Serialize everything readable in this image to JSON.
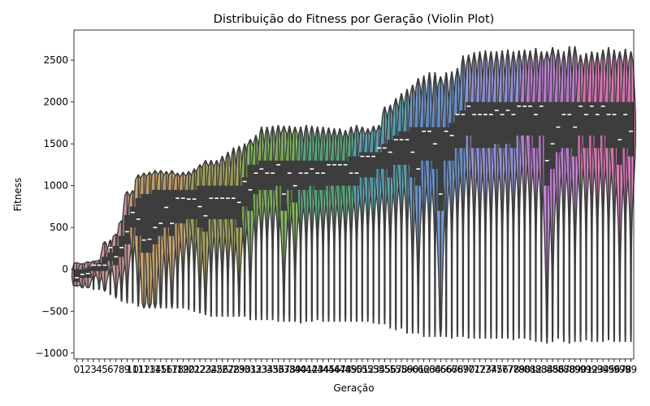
{
  "chart_data": {
    "type": "violin",
    "title": "Distribuição do Fitness por Geração (Violin Plot)",
    "xlabel": "Geração",
    "ylabel": "Fitness",
    "ylim": [
      -1070,
      2860
    ],
    "yticks": [
      -1000,
      -500,
      0,
      500,
      1000,
      1500,
      2000,
      2500
    ],
    "grid": false,
    "legend": "none",
    "colors": {
      "body": "#3d3d3d",
      "edge": "#3d3d3d",
      "median": "#ffffff",
      "palette": [
        "#c88c8c",
        "#c8a064",
        "#a0a050",
        "#78b050",
        "#50a878",
        "#50a0b0",
        "#6090d0",
        "#9090e0",
        "#c078d8",
        "#e070b8"
      ]
    },
    "categories": [
      "0",
      "1",
      "2",
      "3",
      "4",
      "5",
      "6",
      "7",
      "8",
      "9",
      "10",
      "11",
      "12",
      "13",
      "14",
      "15",
      "16",
      "17",
      "18",
      "19",
      "20",
      "21",
      "22",
      "23",
      "24",
      "25",
      "26",
      "27",
      "28",
      "29",
      "30",
      "31",
      "32",
      "33",
      "34",
      "35",
      "36",
      "37",
      "38",
      "39",
      "40",
      "41",
      "42",
      "43",
      "44",
      "45",
      "46",
      "47",
      "48",
      "49",
      "50",
      "51",
      "52",
      "53",
      "54",
      "55",
      "56",
      "57",
      "58",
      "59",
      "60",
      "61",
      "62",
      "63",
      "64",
      "65",
      "66",
      "67",
      "68",
      "69",
      "70",
      "71",
      "72",
      "73",
      "74",
      "75",
      "76",
      "77",
      "78",
      "79",
      "80",
      "81",
      "82",
      "83",
      "84",
      "85",
      "86",
      "87",
      "88",
      "89",
      "90",
      "91",
      "92",
      "93",
      "94",
      "95",
      "96",
      "97",
      "98",
      "99"
    ],
    "max": [
      80,
      70,
      90,
      100,
      110,
      330,
      350,
      420,
      580,
      930,
      940,
      1130,
      1150,
      1160,
      1180,
      1180,
      1170,
      1180,
      1150,
      1160,
      1170,
      1200,
      1250,
      1300,
      1300,
      1300,
      1350,
      1400,
      1450,
      1470,
      1500,
      1550,
      1600,
      1700,
      1700,
      1710,
      1720,
      1710,
      1710,
      1700,
      1700,
      1720,
      1710,
      1700,
      1700,
      1690,
      1680,
      1680,
      1660,
      1700,
      1720,
      1700,
      1680,
      1710,
      1720,
      1940,
      1960,
      2040,
      2100,
      2150,
      2200,
      2280,
      2310,
      2350,
      2350,
      2300,
      2350,
      2360,
      2400,
      2550,
      2560,
      2590,
      2600,
      2610,
      2600,
      2600,
      2610,
      2620,
      2600,
      2610,
      2620,
      2610,
      2640,
      2600,
      2600,
      2650,
      2620,
      2600,
      2660,
      2660,
      2560,
      2580,
      2600,
      2590,
      2620,
      2650,
      2620,
      2600,
      2630,
      2600
    ],
    "q3": [
      0,
      0,
      20,
      40,
      80,
      150,
      200,
      280,
      400,
      650,
      750,
      850,
      900,
      900,
      950,
      950,
      950,
      950,
      950,
      950,
      950,
      950,
      1000,
      1000,
      1000,
      1000,
      1000,
      1000,
      1000,
      1000,
      1100,
      1250,
      1250,
      1300,
      1300,
      1300,
      1300,
      1300,
      1300,
      1300,
      1300,
      1300,
      1300,
      1300,
      1300,
      1300,
      1300,
      1300,
      1300,
      1350,
      1350,
      1400,
      1400,
      1400,
      1400,
      1500,
      1550,
      1600,
      1650,
      1650,
      1700,
      1700,
      1700,
      1700,
      1700,
      1700,
      1700,
      1750,
      1850,
      1900,
      2000,
      2000,
      2000,
      2000,
      2000,
      2000,
      2000,
      2000,
      2000,
      2000,
      2000,
      2000,
      2000,
      2000,
      2000,
      2000,
      2000,
      2000,
      2000,
      2000,
      2000,
      2000,
      2000,
      2000,
      2000,
      2000,
      2000,
      2000,
      2000,
      2000
    ],
    "median": [
      -100,
      -60,
      -50,
      50,
      50,
      50,
      260,
      150,
      260,
      450,
      680,
      600,
      350,
      360,
      500,
      550,
      740,
      550,
      850,
      850,
      840,
      840,
      750,
      640,
      850,
      850,
      850,
      850,
      850,
      800,
      1050,
      950,
      1150,
      1200,
      1150,
      1150,
      1250,
      900,
      1150,
      1000,
      1150,
      1150,
      1200,
      1150,
      1150,
      1250,
      1250,
      1250,
      1250,
      1150,
      1150,
      1350,
      1350,
      1350,
      1450,
      1450,
      1400,
      1550,
      1550,
      1550,
      1400,
      1200,
      1650,
      1650,
      1500,
      900,
      1650,
      1600,
      1850,
      1850,
      1950,
      1850,
      1850,
      1850,
      1850,
      1900,
      1850,
      1900,
      1850,
      1950,
      1950,
      1950,
      1850,
      1950,
      1300,
      1500,
      1700,
      1850,
      1850,
      1700,
      1950,
      1850,
      1950,
      1850,
      1950,
      1850,
      1850,
      1550,
      1850,
      1650
    ],
    "q1": [
      -150,
      -100,
      -100,
      -20,
      -20,
      -20,
      100,
      50,
      150,
      300,
      500,
      400,
      200,
      200,
      300,
      400,
      500,
      400,
      550,
      550,
      600,
      600,
      500,
      450,
      600,
      600,
      600,
      600,
      600,
      500,
      750,
      700,
      900,
      950,
      950,
      950,
      1000,
      700,
      950,
      800,
      950,
      950,
      1000,
      950,
      950,
      1000,
      1000,
      1000,
      1000,
      1000,
      1000,
      1100,
      1100,
      1100,
      1200,
      1200,
      1100,
      1250,
      1250,
      1250,
      1100,
      1000,
      1300,
      1300,
      1200,
      700,
      1300,
      1300,
      1450,
      1450,
      1600,
      1450,
      1450,
      1450,
      1450,
      1500,
      1450,
      1500,
      1450,
      1600,
      1600,
      1600,
      1450,
      1600,
      1000,
      1200,
      1400,
      1450,
      1450,
      1350,
      1600,
      1450,
      1600,
      1450,
      1600,
      1450,
      1450,
      1250,
      1450,
      1350
    ],
    "min": [
      -200,
      -220,
      -220,
      -240,
      -240,
      -260,
      -300,
      -340,
      -380,
      -400,
      -400,
      -440,
      -460,
      -460,
      -460,
      -460,
      -460,
      -460,
      -460,
      -460,
      -480,
      -500,
      -520,
      -540,
      -560,
      -560,
      -560,
      -560,
      -560,
      -560,
      -560,
      -600,
      -600,
      -600,
      -600,
      -600,
      -620,
      -620,
      -620,
      -620,
      -640,
      -620,
      -620,
      -600,
      -620,
      -620,
      -620,
      -620,
      -620,
      -620,
      -620,
      -620,
      -620,
      -640,
      -650,
      -650,
      -700,
      -720,
      -700,
      -760,
      -760,
      -760,
      -800,
      -800,
      -800,
      -800,
      -800,
      -820,
      -800,
      -800,
      -820,
      -820,
      -820,
      -820,
      -820,
      -820,
      -820,
      -820,
      -840,
      -820,
      -820,
      -840,
      -860,
      -860,
      -880,
      -860,
      -820,
      -860,
      -880,
      -860,
      -860,
      -840,
      -860,
      -860,
      -860,
      -840,
      -860,
      -860,
      -860,
      -860
    ]
  }
}
